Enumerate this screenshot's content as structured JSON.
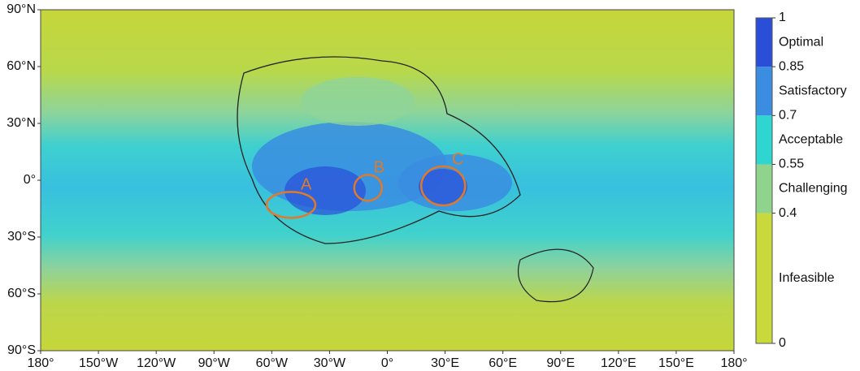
{
  "map": {
    "xlim": [
      -180,
      180
    ],
    "ylim": [
      -90,
      90
    ],
    "xticks": [
      {
        "value": -180,
        "label": "180°"
      },
      {
        "value": -150,
        "label": "150°W"
      },
      {
        "value": -120,
        "label": "120°W"
      },
      {
        "value": -90,
        "label": "90°W"
      },
      {
        "value": -60,
        "label": "60°W"
      },
      {
        "value": -30,
        "label": "30°W"
      },
      {
        "value": 0,
        "label": "0°"
      },
      {
        "value": 30,
        "label": "30°E"
      },
      {
        "value": 60,
        "label": "60°E"
      },
      {
        "value": 90,
        "label": "90°E"
      },
      {
        "value": 120,
        "label": "120°E"
      },
      {
        "value": 150,
        "label": "150°E"
      },
      {
        "value": 180,
        "label": "180°"
      }
    ],
    "yticks": [
      {
        "value": 90,
        "label": "90°N"
      },
      {
        "value": 60,
        "label": "60°N"
      },
      {
        "value": 30,
        "label": "30°N"
      },
      {
        "value": 0,
        "label": "0°"
      },
      {
        "value": -30,
        "label": "30°S"
      },
      {
        "value": -60,
        "label": "60°S"
      },
      {
        "value": -90,
        "label": "90°S"
      }
    ],
    "sites": [
      {
        "name": "A",
        "lon": -50,
        "lat": -13
      },
      {
        "name": "B",
        "lon": -10,
        "lat": -4
      },
      {
        "name": "C",
        "lon": 29,
        "lat": -3
      }
    ]
  },
  "colorbar": {
    "ticks": [
      0,
      0.4,
      0.55,
      0.7,
      0.85,
      1
    ],
    "classes": [
      {
        "name": "Infeasible",
        "color": "#c9d93c"
      },
      {
        "name": "Challenging",
        "color": "#8fd38c"
      },
      {
        "name": "Acceptable",
        "color": "#2fd6d0"
      },
      {
        "name": "Satisfactory",
        "color": "#3a8de0"
      },
      {
        "name": "Optimal",
        "color": "#2a4ed8"
      }
    ]
  }
}
